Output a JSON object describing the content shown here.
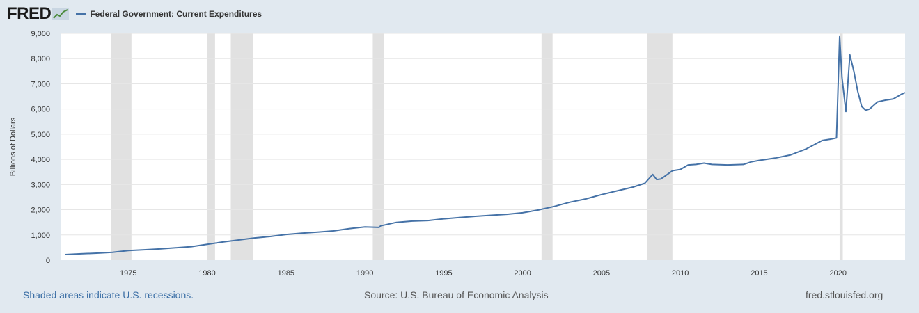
{
  "brand": {
    "logo_text": "FRED"
  },
  "footer": {
    "note": "Shaded areas indicate U.S. recessions.",
    "source": "Source: U.S. Bureau of Economic Analysis",
    "site": "fred.stlouisfed.org"
  },
  "colors": {
    "line": "#4572a7",
    "recession": "#e1e1e1",
    "background": "#e1e9f0",
    "plot": "#ffffff"
  },
  "chart_data": {
    "type": "line",
    "title": "",
    "ylabel": "Billions of Dollars",
    "xlabel": "",
    "xlim": [
      1970.75,
      2024.25
    ],
    "ylim": [
      0,
      9000
    ],
    "xticks": [
      "1975",
      "1980",
      "1985",
      "1990",
      "1995",
      "2000",
      "2005",
      "2010",
      "2015",
      "2020"
    ],
    "yticks": [
      "0",
      "1,000",
      "2,000",
      "3,000",
      "4,000",
      "5,000",
      "6,000",
      "7,000",
      "8,000",
      "9,000"
    ],
    "grid": true,
    "legend": "top-left",
    "recessions": [
      [
        1973.9,
        1975.2
      ],
      [
        1980.0,
        1980.5
      ],
      [
        1981.5,
        1982.9
      ],
      [
        1990.5,
        1991.2
      ],
      [
        2001.2,
        2001.9
      ],
      [
        2007.9,
        2009.5
      ],
      [
        2020.1,
        2020.3
      ]
    ],
    "series": [
      {
        "name": "Federal Government: Current Expenditures",
        "x": [
          1971,
          1972,
          1973,
          1974,
          1975,
          1976,
          1977,
          1978,
          1979,
          1980,
          1981,
          1982,
          1983,
          1984,
          1985,
          1986,
          1987,
          1988,
          1989,
          1990,
          1990.9,
          1991,
          1992,
          1993,
          1994,
          1995,
          1996,
          1997,
          1998,
          1999,
          2000,
          2001,
          2002,
          2003,
          2004,
          2005,
          2006,
          2007,
          2007.75,
          2008.25,
          2008.5,
          2008.75,
          2009,
          2009.5,
          2010,
          2010.5,
          2011,
          2011.5,
          2012,
          2013,
          2014,
          2014.5,
          2015,
          2016,
          2017,
          2018,
          2019,
          2019.5,
          2019.9,
          2020.1,
          2020.25,
          2020.5,
          2020.75,
          2021,
          2021.25,
          2021.5,
          2021.75,
          2022,
          2022.5,
          2023,
          2023.5,
          2024,
          2024.25
        ],
        "y": [
          220,
          250,
          275,
          310,
          380,
          410,
          445,
          490,
          535,
          630,
          720,
          800,
          880,
          940,
          1020,
          1070,
          1110,
          1160,
          1250,
          1320,
          1300,
          1360,
          1500,
          1550,
          1570,
          1640,
          1690,
          1740,
          1780,
          1820,
          1880,
          1990,
          2130,
          2300,
          2430,
          2600,
          2750,
          2900,
          3050,
          3400,
          3200,
          3220,
          3320,
          3550,
          3600,
          3780,
          3800,
          3850,
          3800,
          3780,
          3800,
          3900,
          3960,
          4050,
          4180,
          4420,
          4750,
          4800,
          4850,
          8870,
          7250,
          5900,
          8150,
          7500,
          6700,
          6100,
          5950,
          6000,
          6280,
          6350,
          6400,
          6580,
          6650
        ]
      }
    ]
  }
}
